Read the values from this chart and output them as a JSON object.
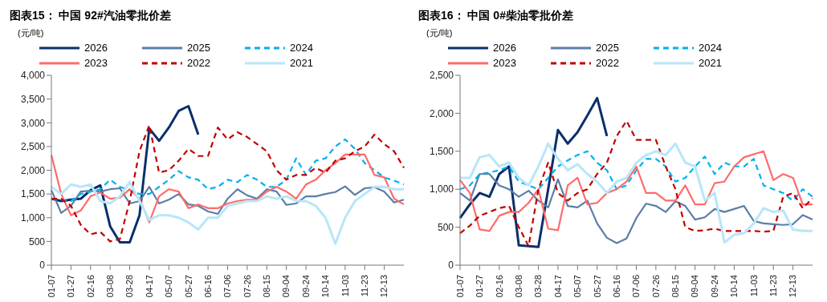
{
  "chart_data": [
    {
      "type": "line",
      "title": "图表15：  中国 92#汽油零批价差",
      "ylabel": "(元/吨)",
      "legend": "top",
      "grid": false,
      "categories": [
        "01-07",
        null,
        "01-27",
        null,
        "02-16",
        null,
        "03-08",
        null,
        "03-28",
        null,
        "04-17",
        null,
        "05-07",
        null,
        "05-27",
        null,
        "06-16",
        null,
        "07-06",
        null,
        "07-26",
        null,
        "08-15",
        null,
        "09-04",
        null,
        "09-24",
        null,
        "10-14",
        null,
        "11-03",
        null,
        "11-23",
        null,
        "12-13",
        null,
        null
      ],
      "ylim": [
        0,
        4000
      ],
      "yticks": [
        {
          "value": 0,
          "label": "0"
        },
        {
          "value": 500,
          "label": "500"
        },
        {
          "value": 1000,
          "label": "1,000"
        },
        {
          "value": 1500,
          "label": "1,500"
        },
        {
          "value": 2000,
          "label": "2,000"
        },
        {
          "value": 2500,
          "label": "2,500"
        },
        {
          "value": 3000,
          "label": "3,000"
        },
        {
          "value": 3500,
          "label": "3,500"
        },
        {
          "value": 4000,
          "label": "4,000"
        }
      ],
      "series": [
        {
          "name": "2026",
          "color": "#0b2f6b",
          "line_style": "solid",
          "values": [
            1400,
            1350,
            1380,
            1400,
            1580,
            1680,
            820,
            480,
            480,
            1050,
            2880,
            2620,
            2900,
            3250,
            3350,
            2750,
            null,
            null,
            null,
            null,
            null,
            null,
            null,
            null,
            null,
            null,
            null,
            null,
            null,
            null,
            null,
            null,
            null,
            null,
            null,
            null,
            null
          ]
        },
        {
          "name": "2025",
          "color": "#5b7ea8",
          "line_style": "solid",
          "values": [
            1580,
            1100,
            1250,
            1550,
            1570,
            1550,
            1600,
            1620,
            1300,
            1350,
            1650,
            1300,
            1380,
            1500,
            1280,
            1250,
            1130,
            1080,
            1400,
            1600,
            1470,
            1400,
            1600,
            1550,
            1270,
            1300,
            1450,
            1450,
            1500,
            1540,
            1660,
            1480,
            1620,
            1640,
            1550,
            1320,
            1380
          ]
        },
        {
          "name": "2024",
          "color": "#00b0f0",
          "line_style": "dashed",
          "values": [
            1400,
            1380,
            1350,
            1500,
            1550,
            1600,
            1800,
            1650,
            1580,
            1500,
            1500,
            1650,
            1800,
            1980,
            1850,
            1800,
            1600,
            1650,
            1800,
            1750,
            1900,
            1800,
            1650,
            1650,
            1800,
            2250,
            1900,
            2200,
            2250,
            2500,
            2650,
            2450,
            2150,
            2000,
            1850,
            1780,
            1700
          ]
        },
        {
          "name": "2023",
          "color": "#ff6b6b",
          "line_style": "solid",
          "values": [
            2320,
            1500,
            1050,
            1150,
            1450,
            1530,
            1400,
            1420,
            1600,
            1400,
            900,
            1450,
            1600,
            1550,
            1200,
            1280,
            1200,
            1200,
            1300,
            1350,
            1380,
            1380,
            1550,
            1650,
            1550,
            1400,
            1700,
            1800,
            2000,
            2150,
            2330,
            2330,
            2330,
            1900,
            1850,
            1400,
            1280
          ]
        },
        {
          "name": "2022",
          "color": "#c00000",
          "line_style": "dashed",
          "values": [
            1400,
            1400,
            1250,
            850,
            650,
            700,
            500,
            550,
            1350,
            2400,
            2950,
            1950,
            2000,
            2200,
            2450,
            2300,
            2300,
            2900,
            2650,
            2800,
            2700,
            2550,
            2400,
            2000,
            1800,
            1900,
            1900,
            2050,
            1950,
            2200,
            2250,
            2400,
            2500,
            2750,
            2550,
            2400,
            2050
          ]
        },
        {
          "name": "2021",
          "color": "#b8e6f8",
          "line_style": "solid",
          "values": [
            1650,
            1500,
            1700,
            1650,
            1700,
            1350,
            1300,
            1450,
            1750,
            1350,
            950,
            1050,
            1050,
            1000,
            900,
            750,
            1000,
            1000,
            1250,
            1300,
            1350,
            1350,
            1450,
            1400,
            1450,
            1350,
            1350,
            1250,
            1000,
            450,
            1000,
            1350,
            1500,
            1650,
            1650,
            1600,
            1600
          ]
        }
      ]
    },
    {
      "type": "line",
      "title": "图表16：  中国 0#柴油零批价差",
      "ylabel": "(元/吨)",
      "legend": "top",
      "grid": false,
      "categories": [
        "01-07",
        null,
        "01-27",
        null,
        "02-16",
        null,
        "03-08",
        null,
        "03-28",
        null,
        "04-17",
        null,
        "05-07",
        null,
        "05-27",
        null,
        "06-16",
        null,
        "07-06",
        null,
        "07-26",
        null,
        "08-15",
        null,
        "09-04",
        null,
        "09-24",
        null,
        "10-14",
        null,
        "11-03",
        null,
        "11-23",
        null,
        "12-13",
        null,
        null
      ],
      "ylim": [
        0,
        2500
      ],
      "yticks": [
        {
          "value": 0,
          "label": "0"
        },
        {
          "value": 500,
          "label": "500"
        },
        {
          "value": 1000,
          "label": "1,000"
        },
        {
          "value": 1500,
          "label": "1,500"
        },
        {
          "value": 2000,
          "label": "2,000"
        },
        {
          "value": 2500,
          "label": "2,500"
        }
      ],
      "series": [
        {
          "name": "2026",
          "color": "#0b2f6b",
          "line_style": "solid",
          "values": [
            620,
            800,
            950,
            900,
            1200,
            1300,
            260,
            250,
            240,
            1000,
            1780,
            1600,
            1750,
            1970,
            2200,
            1700,
            null,
            null,
            null,
            null,
            null,
            null,
            null,
            null,
            null,
            null,
            null,
            null,
            null,
            null,
            null,
            null,
            null,
            null,
            null,
            null,
            null
          ]
        },
        {
          "name": "2025",
          "color": "#5b7ea8",
          "line_style": "solid",
          "values": [
            950,
            850,
            1200,
            1200,
            1050,
            1000,
            900,
            980,
            850,
            760,
            1130,
            780,
            760,
            850,
            550,
            360,
            290,
            350,
            620,
            810,
            780,
            700,
            840,
            780,
            600,
            630,
            740,
            700,
            740,
            780,
            580,
            550,
            540,
            530,
            540,
            660,
            600
          ]
        },
        {
          "name": "2024",
          "color": "#00b0f0",
          "line_style": "dashed",
          "values": [
            1000,
            1050,
            1200,
            1220,
            1250,
            1300,
            1100,
            1050,
            1000,
            1150,
            1300,
            1380,
            1450,
            1500,
            1350,
            1250,
            1000,
            1050,
            1250,
            1400,
            1400,
            1300,
            1100,
            1150,
            1300,
            1430,
            1200,
            1350,
            1300,
            1300,
            1400,
            1050,
            1000,
            950,
            850,
            1000,
            900
          ]
        },
        {
          "name": "2023",
          "color": "#ff6b6b",
          "line_style": "solid",
          "values": [
            1120,
            950,
            470,
            450,
            650,
            700,
            700,
            820,
            1000,
            480,
            460,
            1050,
            1150,
            800,
            820,
            950,
            1000,
            1100,
            1300,
            950,
            950,
            850,
            850,
            1050,
            800,
            800,
            1080,
            1100,
            1300,
            1420,
            1460,
            1500,
            1120,
            1200,
            1150,
            800,
            800
          ]
        },
        {
          "name": "2022",
          "color": "#c00000",
          "line_style": "dashed",
          "values": [
            420,
            520,
            650,
            700,
            750,
            780,
            500,
            250,
            1000,
            1350,
            950,
            850,
            950,
            1000,
            1200,
            1350,
            1700,
            1900,
            1650,
            1650,
            1650,
            1300,
            1000,
            500,
            450,
            460,
            480,
            450,
            450,
            450,
            450,
            440,
            450,
            900,
            950,
            750,
            880
          ]
        },
        {
          "name": "2021",
          "color": "#b8e6f8",
          "line_style": "solid",
          "values": [
            1150,
            1150,
            1420,
            1450,
            1300,
            1350,
            1150,
            1050,
            1300,
            1600,
            1400,
            1250,
            1330,
            1200,
            1100,
            950,
            1100,
            1150,
            1350,
            1450,
            1500,
            1450,
            1600,
            1350,
            1300,
            850,
            950,
            300,
            400,
            420,
            550,
            750,
            700,
            720,
            470,
            450,
            450
          ]
        }
      ]
    }
  ]
}
